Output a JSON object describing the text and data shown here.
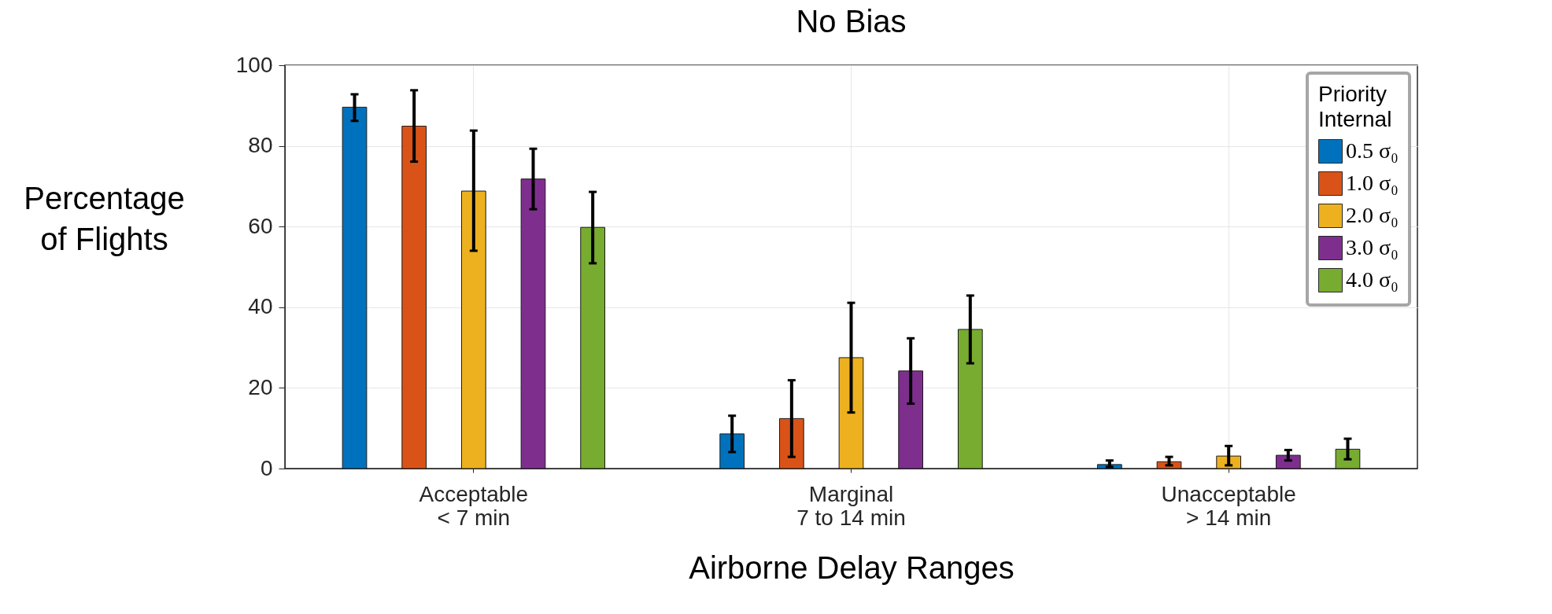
{
  "chart_data": {
    "type": "bar",
    "title": "No Bias",
    "xlabel": "Airborne Delay Ranges",
    "ylabel": "Percentage\nof Flights",
    "legend_title": "Priority\nInternal",
    "categories": [
      "Acceptable\n< 7 min",
      "Marginal\n7 to 14 min",
      "Unacceptable\n> 14 min"
    ],
    "series": [
      {
        "name": "0.5 σ₀",
        "color": "#0072bd",
        "values": [
          89.6,
          8.6,
          1.0
        ],
        "errors": [
          [
            86.2,
            92.8
          ],
          [
            4.1,
            13.1
          ],
          [
            0.4,
            2.0
          ]
        ]
      },
      {
        "name": "1.0 σ₀",
        "color": "#d95319",
        "values": [
          84.9,
          12.4,
          1.7
        ],
        "errors": [
          [
            76.1,
            93.8
          ],
          [
            2.9,
            21.9
          ],
          [
            0.8,
            2.9
          ]
        ]
      },
      {
        "name": "2.0 σ₀",
        "color": "#edb120",
        "values": [
          68.8,
          27.5,
          3.1
        ],
        "errors": [
          [
            54.0,
            83.8
          ],
          [
            13.9,
            41.1
          ],
          [
            0.8,
            5.6
          ]
        ]
      },
      {
        "name": "3.0 σ₀",
        "color": "#7e2f8e",
        "values": [
          71.8,
          24.2,
          3.3
        ],
        "errors": [
          [
            64.3,
            79.3
          ],
          [
            16.1,
            32.3
          ],
          [
            2.0,
            4.6
          ]
        ]
      },
      {
        "name": "4.0 σ₀",
        "color": "#77ac30",
        "values": [
          59.8,
          34.5,
          4.8
        ],
        "errors": [
          [
            50.9,
            68.6
          ],
          [
            26.1,
            42.9
          ],
          [
            2.3,
            7.4
          ]
        ]
      }
    ],
    "ylim": [
      0,
      100
    ],
    "yticks": [
      0,
      20,
      40,
      60,
      80,
      100
    ],
    "grid": true,
    "legend": "top right"
  }
}
